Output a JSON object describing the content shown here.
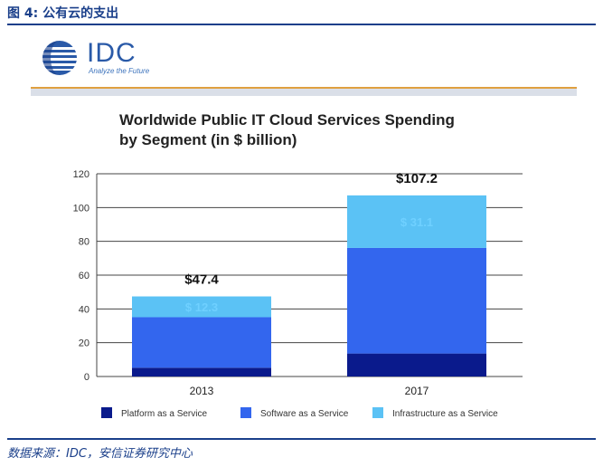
{
  "figure": {
    "label": "图 4:  公有云的支出",
    "source": "数据来源：IDC，安信证券研究中心"
  },
  "logo": {
    "brand": "IDC",
    "tagline": "Analyze the Future"
  },
  "colors": {
    "platform": "#0a1a8c",
    "software": "#3366ee",
    "infrastructure": "#5bc2f5",
    "frame": "#1a3f8a"
  },
  "chart_data": {
    "type": "bar",
    "stacked": true,
    "title_lines": [
      "Worldwide Public IT Cloud Services Spending",
      "by Segment (in $ billion)"
    ],
    "categories": [
      "2013",
      "2017"
    ],
    "series": [
      {
        "name": "Platform as a Service",
        "values": [
          5.2,
          13.6
        ]
      },
      {
        "name": "Software as a Service",
        "values": [
          29.9,
          62.5
        ]
      },
      {
        "name": "Infrastructure as a Service",
        "values": [
          12.3,
          31.1
        ]
      }
    ],
    "segment_labels": [
      "$ 12.3",
      "$ 31.1"
    ],
    "totals": [
      "$47.4",
      "$107.2"
    ],
    "ylim": [
      0,
      120
    ],
    "yticks": [
      "0",
      "20",
      "40",
      "60",
      "80",
      "100",
      "120"
    ],
    "grid": true,
    "legend_position": "bottom"
  }
}
